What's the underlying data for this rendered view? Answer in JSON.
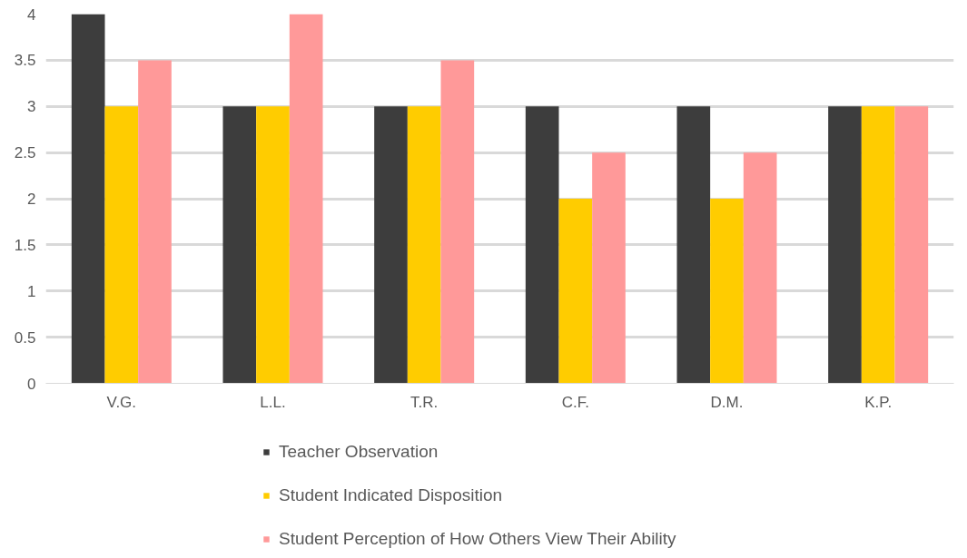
{
  "chart_data": {
    "type": "bar",
    "categories": [
      "V.G.",
      "L.L.",
      "T.R.",
      "C.F.",
      "D.M.",
      "K.P."
    ],
    "series": [
      {
        "name": "Teacher Observation",
        "color": "#3d3d3d",
        "values": [
          4,
          3,
          3,
          3,
          3,
          3
        ]
      },
      {
        "name": "Student Indicated Disposition",
        "color": "#ffcc00",
        "values": [
          3,
          3,
          3,
          2,
          2,
          3
        ]
      },
      {
        "name": "Student Perception of How Others View Their Ability",
        "color": "#ff9999",
        "values": [
          3.5,
          4,
          3.5,
          2.5,
          2.5,
          3
        ]
      }
    ],
    "ylim": [
      0,
      4
    ],
    "yticks": [
      0,
      0.5,
      1,
      1.5,
      2,
      2.5,
      3,
      3.5,
      4
    ],
    "grid": "y",
    "legend": "bottom"
  }
}
